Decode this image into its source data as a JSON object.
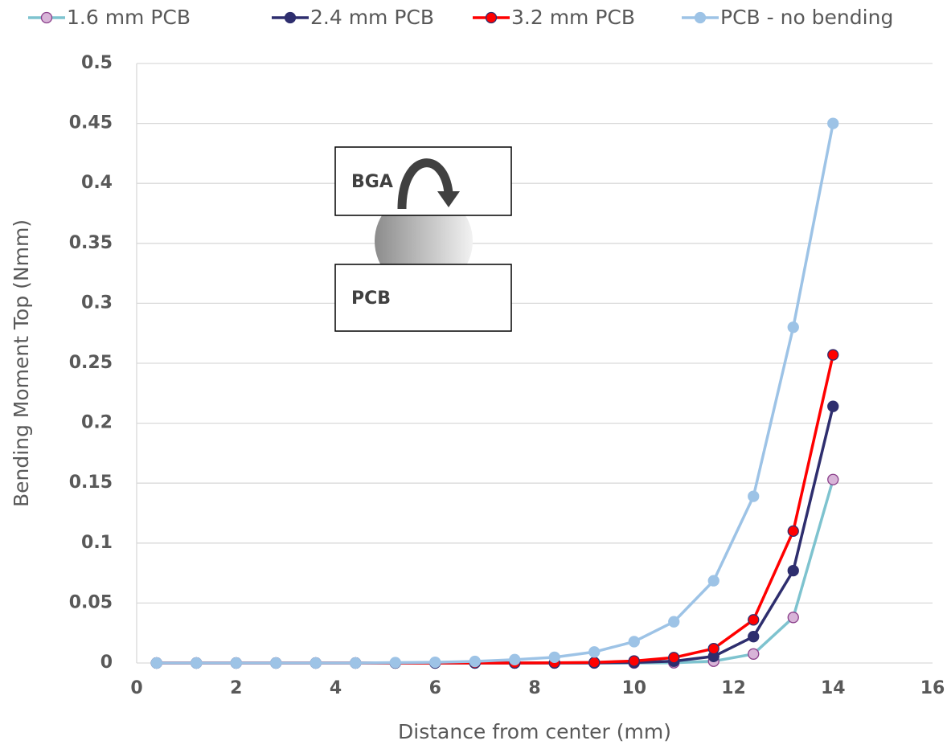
{
  "chart_data": {
    "type": "line",
    "x_label": "Distance from center (mm)",
    "y_label": "Bending Moment Top (Nmm)",
    "x": [
      0.4,
      1.2,
      2.0,
      2.8,
      3.6,
      4.4,
      5.2,
      6.0,
      6.8,
      7.6,
      8.4,
      9.2,
      10.0,
      10.8,
      11.6,
      12.4,
      13.2,
      14.0
    ],
    "series": [
      {
        "name": "1.6 mm PCB",
        "color": "#7ec3cf",
        "marker_fill": "#d8b4d8",
        "marker_edge": "#8a3f8a",
        "values": [
          0,
          0,
          0,
          0,
          0,
          0,
          0,
          0,
          0,
          0,
          0,
          0,
          0,
          0.0002,
          0.0015,
          0.0075,
          0.038,
          0.153
        ]
      },
      {
        "name": "2.4 mm PCB",
        "color": "#2e2e6e",
        "marker_fill": "#2e2e6e",
        "marker_edge": "#2e2e6e",
        "values": [
          0,
          0,
          0,
          0,
          0,
          0,
          0,
          0,
          0,
          0,
          0,
          0.0001,
          0.0004,
          0.0015,
          0.0055,
          0.022,
          0.077,
          0.214
        ]
      },
      {
        "name": "3.2 mm PCB",
        "color": "#ff0000",
        "marker_fill": "#ff0000",
        "marker_edge": "#2e2e6e",
        "values": [
          0,
          0,
          0,
          0,
          0,
          0,
          0,
          0,
          0,
          0,
          0.0002,
          0.0005,
          0.0017,
          0.0045,
          0.012,
          0.036,
          0.11,
          0.257
        ]
      },
      {
        "name": "PCB - no bending",
        "color": "#9dc3e6",
        "marker_fill": "#9dc3e6",
        "marker_edge": "#9dc3e6",
        "values": [
          0,
          0,
          0,
          0,
          0,
          0,
          0.0003,
          0.0006,
          0.0013,
          0.0028,
          0.0048,
          0.0092,
          0.0178,
          0.0344,
          0.0686,
          0.139,
          0.28,
          0.45
        ]
      }
    ],
    "xlim": [
      0,
      16
    ],
    "xticks": [
      0,
      2,
      4,
      6,
      8,
      10,
      12,
      14,
      16
    ],
    "ylim": [
      0,
      0.5
    ],
    "yticks": [
      0,
      0.05,
      0.1,
      0.15,
      0.2,
      0.25,
      0.3,
      0.35,
      0.4,
      0.45,
      0.5
    ],
    "grid": true,
    "legend": "top",
    "annotations": [
      "BGA",
      "PCB"
    ]
  }
}
